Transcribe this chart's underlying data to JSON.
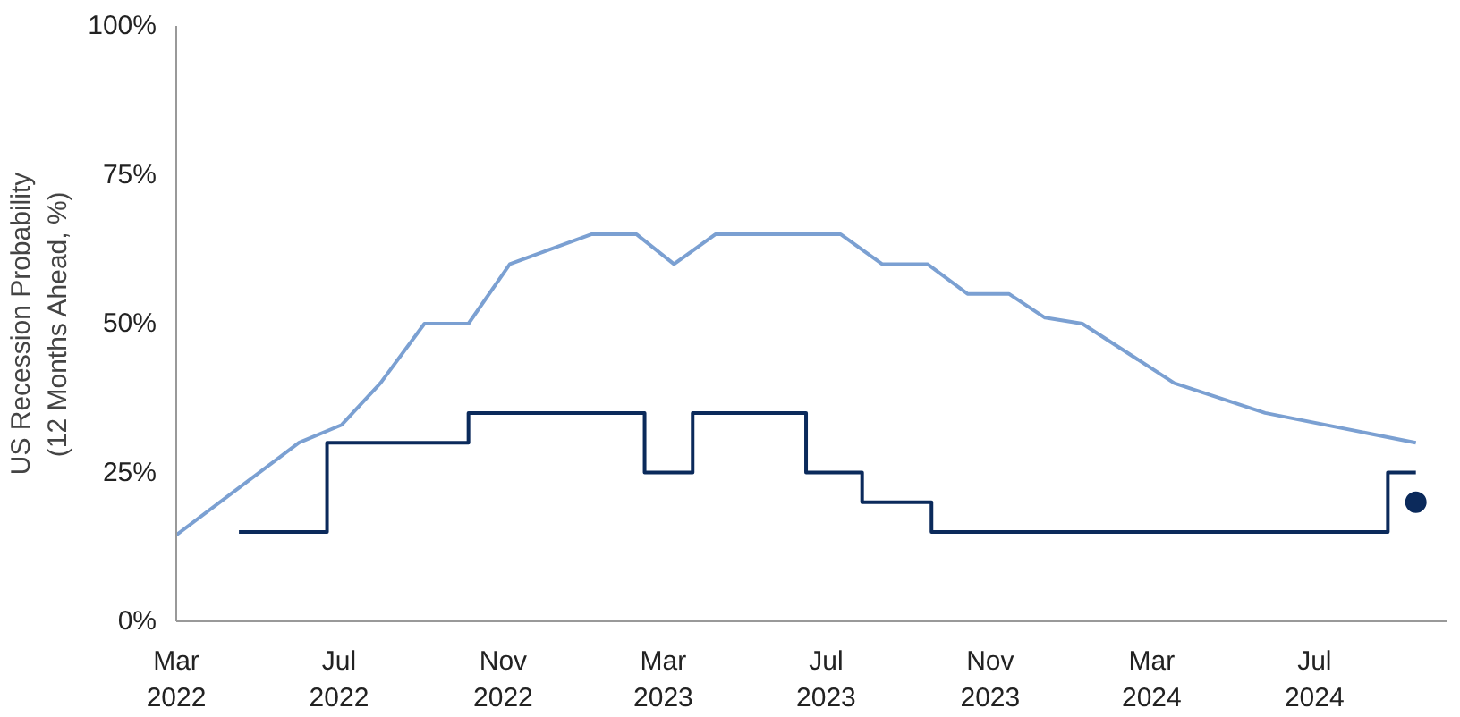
{
  "chart_data": {
    "type": "step",
    "ylabel": "US Recession Probability (12 Months Ahead, %)",
    "series": [
      {
        "color": "#0b2a5b",
        "x": [
          "2022-04-17",
          "2022-06-22",
          "2022-10-06",
          "2023-02-15",
          "2023-03-23",
          "2023-06-16",
          "2023-07-28",
          "2023-09-18",
          "2024-08-25",
          "2024-09-15"
        ],
        "values": [
          15,
          30,
          35,
          25,
          35,
          25,
          20,
          15,
          25,
          25
        ]
      },
      {
        "type": "line",
        "color": "#7ba0d2",
        "x": [
          "2022-03-01",
          "2022-06-01",
          "2022-07-03",
          "2022-08-01",
          "2022-09-03",
          "2022-10-06",
          "2022-11-06",
          "2023-01-06",
          "2023-02-09",
          "2023-03-09",
          "2023-04-09",
          "2023-07-12",
          "2023-08-12",
          "2023-09-15",
          "2023-10-15",
          "2023-11-15",
          "2023-12-12",
          "2024-01-09",
          "2024-03-18",
          "2024-05-25",
          "2024-09-15"
        ],
        "values": [
          14.5,
          30,
          33,
          40,
          50,
          50,
          60,
          65,
          65,
          60,
          65,
          65,
          60,
          60,
          55,
          55,
          51,
          50,
          40,
          35,
          30
        ]
      },
      {
        "type": "scatter",
        "marker": "circle",
        "color": "#0b2a5b",
        "x": [
          "2024-09-15"
        ],
        "values": [
          20
        ]
      }
    ],
    "xlim": [
      "2022-03-01",
      "2024-10-08"
    ],
    "xticks": [
      {
        "value": "2022-03-01",
        "label": "Mar 2022"
      },
      {
        "value": "2022-07-01",
        "label": "Jul 2022"
      },
      {
        "value": "2022-11-01",
        "label": "Nov 2022"
      },
      {
        "value": "2023-03-01",
        "label": "Mar 2023"
      },
      {
        "value": "2023-07-01",
        "label": "Jul 2023"
      },
      {
        "value": "2023-11-01",
        "label": "Nov 2023"
      },
      {
        "value": "2024-03-01",
        "label": "Mar 2024"
      },
      {
        "value": "2024-07-01",
        "label": "Jul 2024"
      }
    ],
    "ylim": [
      0,
      100
    ],
    "yticks": [
      {
        "value": 0,
        "label": "0%"
      },
      {
        "value": 25,
        "label": "25%"
      },
      {
        "value": 50,
        "label": "50%"
      },
      {
        "value": 75,
        "label": "75%"
      },
      {
        "value": 100,
        "label": "100%"
      }
    ],
    "grid": false
  }
}
